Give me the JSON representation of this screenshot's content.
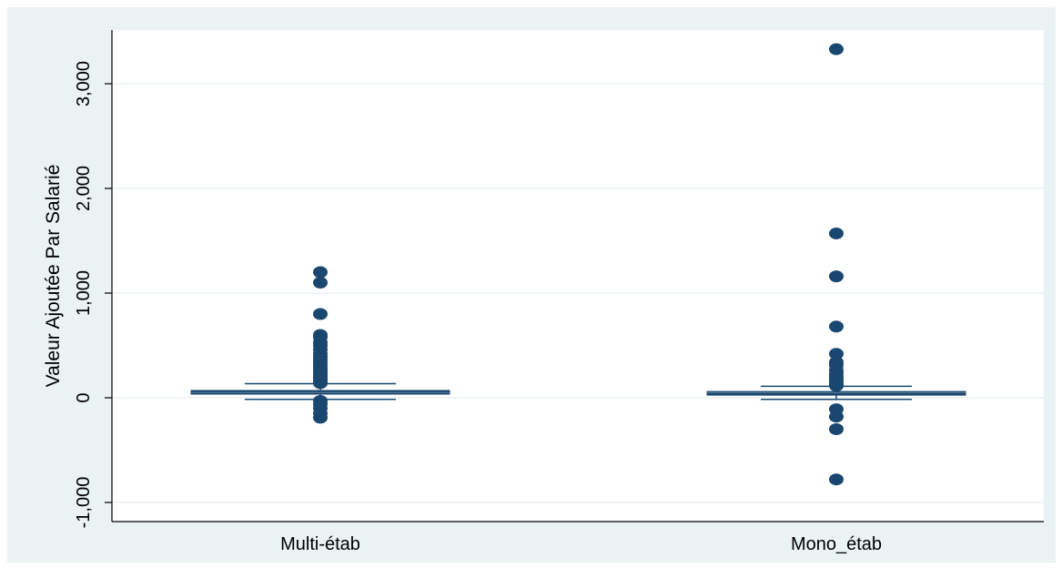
{
  "chart_data": {
    "type": "box",
    "title": "",
    "xlabel": "",
    "ylabel": "Valeur Ajoutée Par Salarié",
    "ylim": [
      -1200,
      3550
    ],
    "yticks": [
      -1000,
      0,
      1000,
      2000,
      3000
    ],
    "ytick_labels": [
      "-1,000",
      "0",
      "1,000",
      "2,000",
      "3,000"
    ],
    "grid": true,
    "categories": [
      "Multi-étab",
      "Mono_étab"
    ],
    "boxes": [
      {
        "category": "Multi-étab",
        "q1": 35,
        "median": 50,
        "q3": 70,
        "whisker_low": -15,
        "whisker_high": 135,
        "outliers": [
          -190,
          -150,
          -100,
          -60,
          -30,
          140,
          160,
          180,
          200,
          220,
          240,
          260,
          280,
          300,
          330,
          360,
          390,
          420,
          460,
          500,
          530,
          580,
          600,
          800,
          1100,
          1200
        ]
      },
      {
        "category": "Mono_étab",
        "q1": 35,
        "median": 50,
        "q3": 60,
        "whisker_low": -15,
        "whisker_high": 110,
        "outliers": [
          -780,
          -300,
          -180,
          -110,
          115,
          130,
          150,
          175,
          200,
          230,
          260,
          310,
          340,
          420,
          680,
          1160,
          1570,
          3330
        ]
      }
    ],
    "colors": {
      "box": "#1a476f",
      "plot_bg": "#ffffff",
      "outer_bg": "#eaf2f3",
      "grid": "#eaf2f3"
    }
  }
}
